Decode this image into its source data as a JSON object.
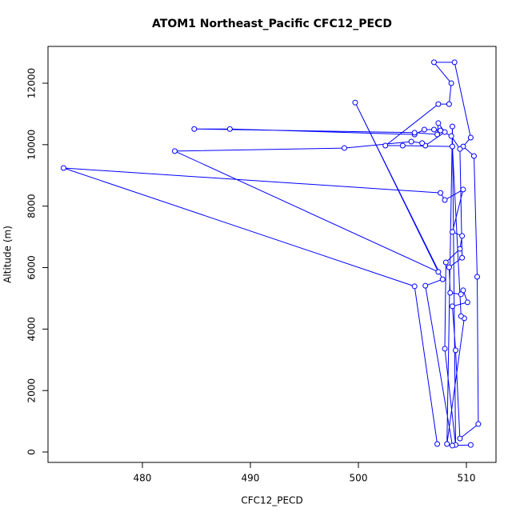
{
  "chart_data": {
    "type": "scatter",
    "title": "ATOM1 Northeast_Pacific CFC12_PECD",
    "x_label": "CFC12_PECD",
    "y_label": "Altitude (m)",
    "connect": true,
    "color": "#0000ff",
    "xlim": [
      471.26,
      512.74
    ],
    "ylim": [
      -338,
      13197
    ],
    "xticks": [
      480,
      490,
      500,
      510
    ],
    "yticks": [
      0,
      2000,
      4000,
      6000,
      8000,
      10000,
      12000
    ],
    "x": [
      507.3,
      505.2,
      472.7,
      507.6,
      508.0,
      509.7,
      508.7,
      509.6,
      509.4,
      508.1,
      508.0,
      509.0,
      508.7,
      508.2,
      509.8,
      509.5,
      508.7,
      504.1,
      502.5,
      507.4,
      508.4,
      508.6,
      507.0,
      508.9,
      510.4,
      509.7,
      510.7,
      511.0,
      511.1,
      509.4,
      509.0,
      508.7,
      510.1,
      509.7,
      509.5,
      508.5,
      508.4,
      509.6,
      509.4,
      508.6,
      507.6,
      507.0,
      506.1,
      505.2,
      488.1,
      484.8,
      505.2,
      507.3,
      507.4,
      508.0,
      506.2,
      505.9,
      504.9,
      498.7,
      483.0,
      507.4,
      499.7,
      507.8,
      506.2,
      508.7,
      510.4
    ],
    "y": [
      260,
      5390,
      9240,
      8430,
      8200,
      8540,
      7160,
      7030,
      6610,
      6170,
      3360,
      230,
      10590,
      260,
      4350,
      4420,
      9940,
      9970,
      9970,
      11320,
      11320,
      12000,
      12680,
      12680,
      10230,
      9940,
      9630,
      5700,
      910,
      440,
      3310,
      4740,
      4870,
      5260,
      5130,
      5180,
      6010,
      6320,
      9860,
      10280,
      10460,
      10490,
      10490,
      10330,
      10510,
      10510,
      10390,
      10330,
      10700,
      10410,
      9970,
      10050,
      10100,
      9890,
      9790,
      5860,
      11370,
      5620,
      5410,
      210,
      230
    ]
  }
}
